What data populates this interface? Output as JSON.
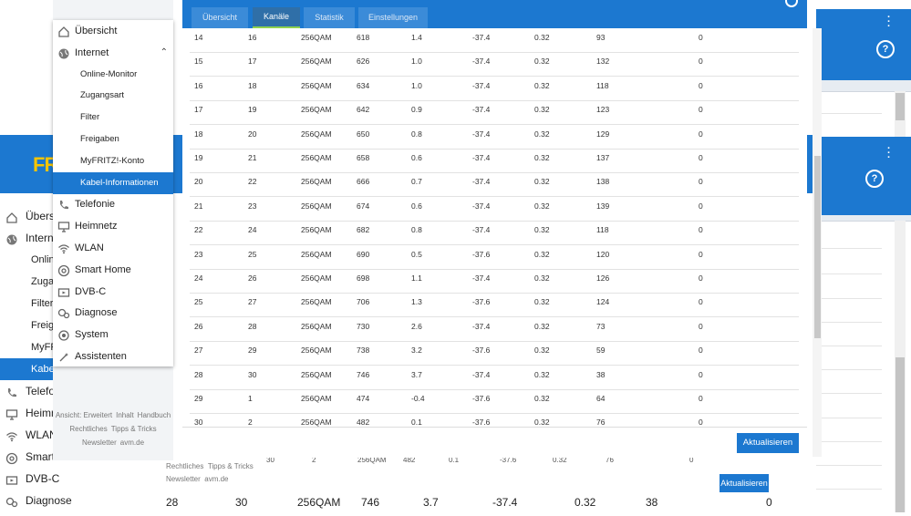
{
  "tabs": [
    "Übersicht",
    "Kanäle",
    "Statistik",
    "Einstellungen"
  ],
  "active_tab": "Kanäle",
  "menu": {
    "items": [
      {
        "label": "Übersicht",
        "icon": "home-icon",
        "sub": false
      },
      {
        "label": "Internet",
        "icon": "globe-icon",
        "sub": false,
        "expanded": true
      },
      {
        "label": "Online-Monitor",
        "sub": true
      },
      {
        "label": "Zugangsart",
        "sub": true
      },
      {
        "label": "Filter",
        "sub": true
      },
      {
        "label": "Freigaben",
        "sub": true
      },
      {
        "label": "MyFRITZ!-Konto",
        "sub": true
      },
      {
        "label": "Kabel-Informationen",
        "sub": true,
        "active": true
      },
      {
        "label": "Telefonie",
        "icon": "phone-icon",
        "sub": false
      },
      {
        "label": "Heimnetz",
        "icon": "monitor-icon",
        "sub": false
      },
      {
        "label": "WLAN",
        "icon": "wifi-icon",
        "sub": false
      },
      {
        "label": "Smart Home",
        "icon": "smart-home-icon",
        "sub": false
      },
      {
        "label": "DVB-C",
        "icon": "tv-icon",
        "sub": false
      },
      {
        "label": "Diagnose",
        "icon": "diagnose-icon",
        "sub": false
      },
      {
        "label": "System",
        "icon": "system-icon",
        "sub": false
      },
      {
        "label": "Assistenten",
        "icon": "wizard-icon",
        "sub": false
      }
    ],
    "footer": [
      "Ansicht: Erweitert",
      "Inhalt",
      "Handbuch",
      "Rechtliches",
      "Tipps & Tricks",
      "Newsletter",
      "avm.de"
    ]
  },
  "table": {
    "rows": [
      [
        "14",
        "16",
        "256QAM",
        "618",
        "1.4",
        "-37.4",
        "0.32",
        "93",
        "0"
      ],
      [
        "15",
        "17",
        "256QAM",
        "626",
        "1.0",
        "-37.4",
        "0.32",
        "132",
        "0"
      ],
      [
        "16",
        "18",
        "256QAM",
        "634",
        "1.0",
        "-37.4",
        "0.32",
        "118",
        "0"
      ],
      [
        "17",
        "19",
        "256QAM",
        "642",
        "0.9",
        "-37.4",
        "0.32",
        "123",
        "0"
      ],
      [
        "18",
        "20",
        "256QAM",
        "650",
        "0.8",
        "-37.4",
        "0.32",
        "129",
        "0"
      ],
      [
        "19",
        "21",
        "256QAM",
        "658",
        "0.6",
        "-37.4",
        "0.32",
        "137",
        "0"
      ],
      [
        "20",
        "22",
        "256QAM",
        "666",
        "0.7",
        "-37.4",
        "0.32",
        "138",
        "0"
      ],
      [
        "21",
        "23",
        "256QAM",
        "674",
        "0.6",
        "-37.4",
        "0.32",
        "139",
        "0"
      ],
      [
        "22",
        "24",
        "256QAM",
        "682",
        "0.8",
        "-37.4",
        "0.32",
        "118",
        "0"
      ],
      [
        "23",
        "25",
        "256QAM",
        "690",
        "0.5",
        "-37.6",
        "0.32",
        "120",
        "0"
      ],
      [
        "24",
        "26",
        "256QAM",
        "698",
        "1.1",
        "-37.4",
        "0.32",
        "126",
        "0"
      ],
      [
        "25",
        "27",
        "256QAM",
        "706",
        "1.3",
        "-37.6",
        "0.32",
        "124",
        "0"
      ],
      [
        "26",
        "28",
        "256QAM",
        "730",
        "2.6",
        "-37.4",
        "0.32",
        "73",
        "0"
      ],
      [
        "27",
        "29",
        "256QAM",
        "738",
        "3.2",
        "-37.6",
        "0.32",
        "59",
        "0"
      ],
      [
        "28",
        "30",
        "256QAM",
        "746",
        "3.7",
        "-37.4",
        "0.32",
        "38",
        "0"
      ],
      [
        "29",
        "1",
        "256QAM",
        "474",
        "-0.4",
        "-37.6",
        "0.32",
        "64",
        "0"
      ],
      [
        "30",
        "2",
        "256QAM",
        "482",
        "0.1",
        "-37.6",
        "0.32",
        "76",
        "0"
      ]
    ]
  },
  "update_button": "Aktualisieren",
  "bg": {
    "logo": "FR",
    "nav": [
      "Übersi",
      "Interne",
      "Onlin",
      "Zugan",
      "Filter",
      "Freiga",
      "MyFR",
      "Kabel",
      "Telefo",
      "Heimn",
      "WLAN",
      "Smart Home",
      "DVB-C",
      "Diagnose"
    ],
    "bottom_row": [
      "28",
      "30",
      "256QAM",
      "746",
      "3.7",
      "-37.4",
      "0.32",
      "38",
      "0"
    ],
    "ghost_row": [
      "30",
      "2",
      "256QAM",
      "482",
      "0.1",
      "-37.6",
      "0.32",
      "76",
      "0"
    ],
    "footer": [
      "Rechtliches",
      "Tipps & Tricks",
      "Newsletter",
      "avm.de"
    ],
    "button": "Aktualisieren"
  },
  "colors": {
    "accent": "#1c78d0",
    "active_tab_indicator": "#8fd14f"
  }
}
